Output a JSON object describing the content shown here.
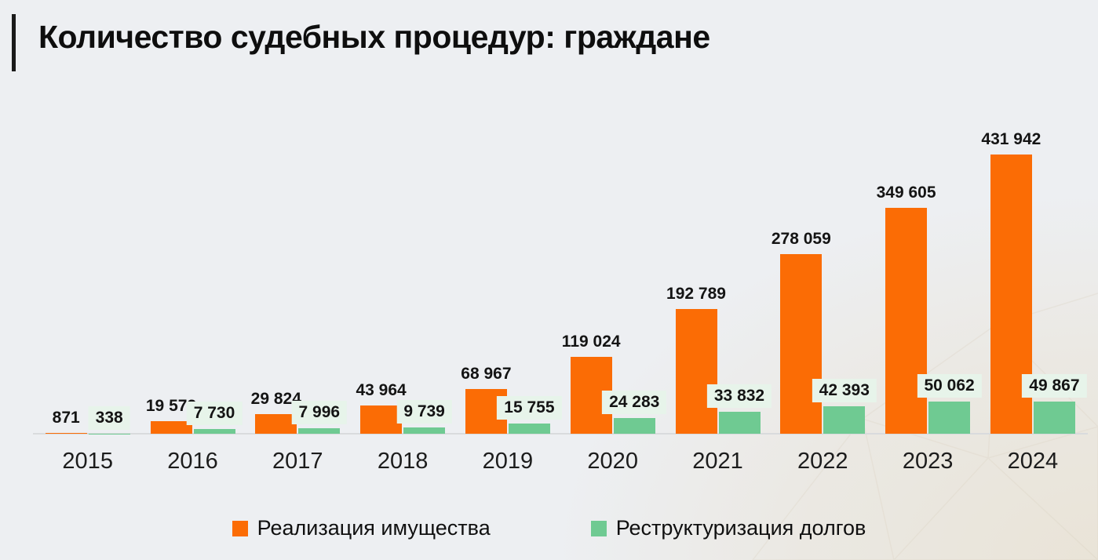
{
  "title": "Количество судебных процедур: граждане",
  "colors": {
    "accent_bar": "#1a1a1a",
    "orange": "#FB6C05",
    "green": "#6FCA92",
    "green_label_bg": "#E7F4EA",
    "background": "#EDEFF2",
    "axis_line": "#D9DBDD"
  },
  "chart_data": {
    "type": "bar",
    "title": "Количество судебных процедур: граждане",
    "categories": [
      "2015",
      "2016",
      "2017",
      "2018",
      "2019",
      "2020",
      "2021",
      "2022",
      "2023",
      "2024"
    ],
    "series": [
      {
        "name": "Реализация имущества",
        "color": "#FB6C05",
        "values": [
          871,
          19572,
          29824,
          43964,
          68967,
          119024,
          192789,
          278059,
          349605,
          431942
        ],
        "labels": [
          "871",
          "19 572",
          "29 824",
          "43 964",
          "68 967",
          "119 024",
          "192 789",
          "278 059",
          "349 605",
          "431 942"
        ]
      },
      {
        "name": "Реструктуризация долгов",
        "color": "#6FCA92",
        "label_bg": "#E7F4EA",
        "values": [
          338,
          7730,
          7996,
          9739,
          15755,
          24283,
          33832,
          42393,
          50062,
          49867
        ],
        "labels": [
          "338",
          "7 730",
          "7 996",
          "9 739",
          "15 755",
          "24 283",
          "33 832",
          "42 393",
          "50 062",
          "49 867"
        ]
      }
    ],
    "ylim": [
      0,
      431942
    ],
    "grid": false,
    "value_labels": "above-bars",
    "legend_position": "bottom"
  },
  "legend": {
    "items": [
      {
        "label": "Реализация имущества",
        "color": "#FB6C05"
      },
      {
        "label": "Реструктуризация долгов",
        "color": "#6FCA92"
      }
    ]
  }
}
